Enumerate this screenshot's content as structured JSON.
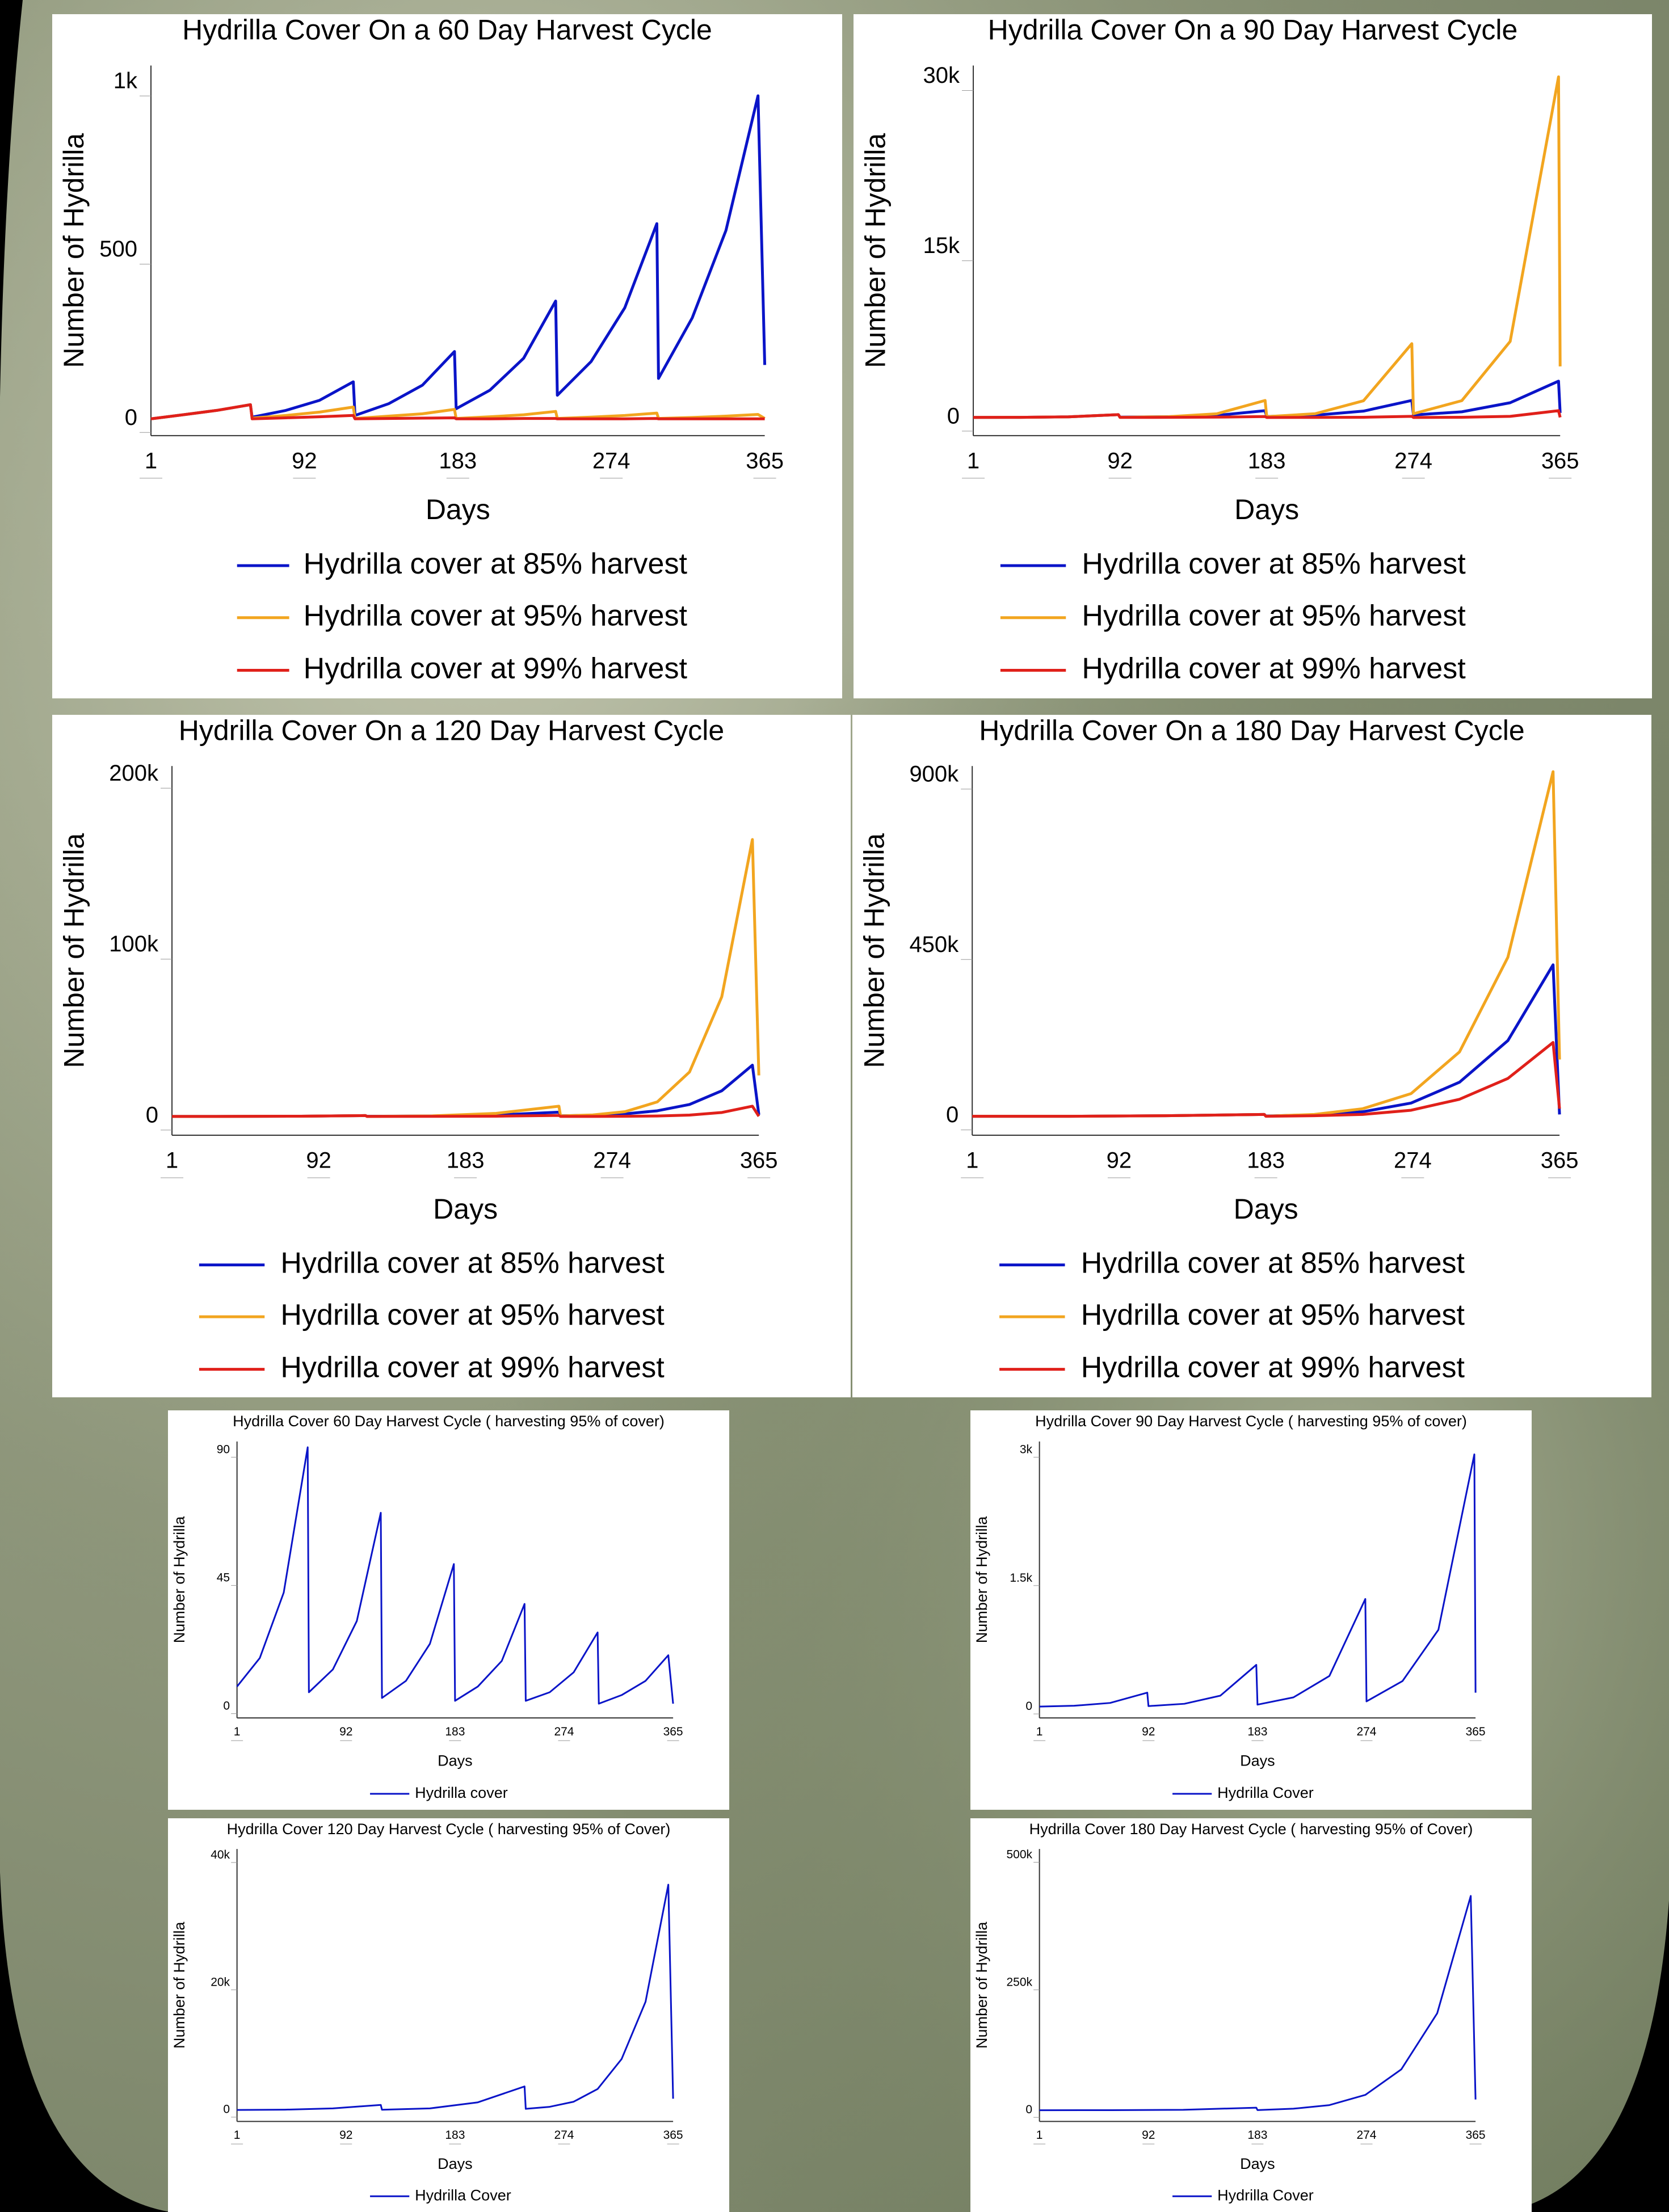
{
  "chart_data": [
    {
      "type": "line",
      "title": "Hydrilla Cover On a 60 Day Harvest Cycle",
      "x_label": "Days",
      "y_label": "Number of Hydrilla",
      "x": [
        1,
        20,
        40,
        60,
        61,
        81,
        101,
        121,
        122,
        142,
        162,
        181,
        182,
        202,
        222,
        241,
        242,
        262,
        282,
        301,
        302,
        322,
        342,
        361,
        365
      ],
      "series": [
        {
          "name": "Hydrilla cover at 85% harvest",
          "color": "#0a14c8",
          "values": [
            0,
            12,
            25,
            42,
            5,
            25,
            55,
            110,
            10,
            45,
            100,
            200,
            30,
            85,
            180,
            350,
            70,
            170,
            330,
            580,
            120,
            300,
            560,
            960,
            160
          ]
        },
        {
          "name": "Hydrilla cover at 95% harvest",
          "color": "#f2a51f",
          "values": [
            0,
            12,
            25,
            42,
            2,
            10,
            20,
            35,
            1,
            8,
            15,
            28,
            1,
            6,
            12,
            22,
            1,
            5,
            10,
            17,
            1,
            4,
            8,
            13,
            1
          ]
        },
        {
          "name": "Hydrilla cover at 99% harvest",
          "color": "#e0201a",
          "values": [
            0,
            12,
            25,
            42,
            0,
            3,
            6,
            10,
            0,
            1,
            2,
            3,
            0,
            0,
            1,
            1,
            0,
            0,
            0,
            1,
            0,
            0,
            0,
            0,
            0
          ]
        }
      ],
      "xlim": [
        1,
        365
      ],
      "xticks": [
        1,
        92,
        183,
        274,
        365
      ],
      "ylim": [
        -50,
        1050
      ],
      "yticks": [
        0,
        500,
        {
          "value": 1000,
          "label": "1k"
        }
      ]
    },
    {
      "type": "line",
      "title": "Hydrilla Cover On a 90 Day Harvest Cycle",
      "x_label": "Days",
      "y_label": "Number of Hydrilla",
      "x": [
        1,
        30,
        60,
        91,
        92,
        122,
        152,
        182,
        183,
        213,
        243,
        273,
        274,
        304,
        334,
        364,
        365
      ],
      "series": [
        {
          "name": "Hydrilla cover at 85% harvest",
          "color": "#0a14c8",
          "values": [
            3,
            13,
            56,
            250,
            30,
            70,
            180,
            600,
            90,
            200,
            560,
            1500,
            220,
            500,
            1300,
            3200,
            400
          ]
        },
        {
          "name": "Hydrilla cover at 95% harvest",
          "color": "#f2a51f",
          "values": [
            3,
            13,
            56,
            250,
            15,
            70,
            325,
            1500,
            75,
            330,
            1470,
            6500,
            330,
            1480,
            6700,
            30000,
            4500
          ]
        },
        {
          "name": "Hydrilla cover at 99% harvest",
          "color": "#e0201a",
          "values": [
            3,
            13,
            56,
            250,
            3,
            10,
            30,
            80,
            1,
            5,
            20,
            100,
            2,
            20,
            100,
            600,
            10
          ]
        }
      ],
      "xlim": [
        1,
        365
      ],
      "xticks": [
        1,
        92,
        183,
        274,
        365
      ],
      "ylim": [
        -1600,
        31000
      ],
      "yticks": [
        0,
        {
          "value": 15000,
          "label": "15k"
        },
        {
          "value": 30000,
          "label": "30k"
        }
      ]
    },
    {
      "type": "line",
      "title": "Hydrilla Cover On a 120 Day Harvest Cycle",
      "x_label": "Days",
      "y_label": "Number of Hydrilla",
      "x": [
        1,
        41,
        81,
        121,
        122,
        162,
        202,
        241,
        242,
        262,
        282,
        302,
        322,
        342,
        361,
        365
      ],
      "series": [
        {
          "name": "Hydrilla cover at 85% harvest",
          "color": "#0a14c8",
          "values": [
            1,
            30,
            150,
            500,
            75,
            250,
            800,
            2500,
            370,
            700,
            1500,
            3300,
            7000,
            15000,
            30000,
            1000
          ]
        },
        {
          "name": "Hydrilla cover at 95% harvest",
          "color": "#f2a51f",
          "values": [
            1,
            30,
            150,
            500,
            25,
            300,
            1800,
            6000,
            300,
            900,
            2800,
            8500,
            26000,
            70000,
            162000,
            24000
          ]
        },
        {
          "name": "Hydrilla cover at 99% harvest",
          "color": "#e0201a",
          "values": [
            1,
            30,
            150,
            500,
            5,
            30,
            150,
            600,
            6,
            25,
            80,
            250,
            800,
            2300,
            6000,
            100
          ]
        }
      ],
      "xlim": [
        1,
        365
      ],
      "xticks": [
        1,
        92,
        183,
        274,
        365
      ],
      "ylim": [
        -11000,
        205000
      ],
      "yticks": [
        0,
        {
          "value": 100000,
          "label": "100k"
        },
        {
          "value": 200000,
          "label": "200k"
        }
      ]
    },
    {
      "type": "line",
      "title": "Hydrilla Cover On a 180 Day Harvest Cycle",
      "x_label": "Days",
      "y_label": "Number of Hydrilla",
      "x": [
        1,
        61,
        121,
        182,
        183,
        213,
        243,
        273,
        303,
        333,
        361,
        365
      ],
      "series": [
        {
          "name": "Hydrilla cover at 85% harvest",
          "color": "#0a14c8",
          "values": [
            1,
            100,
            1500,
            5000,
            750,
            4000,
            12000,
            35000,
            90000,
            200000,
            400000,
            5000
          ]
        },
        {
          "name": "Hydrilla cover at 95% harvest",
          "color": "#f2a51f",
          "values": [
            1,
            100,
            1500,
            5000,
            250,
            5000,
            20000,
            60000,
            170000,
            420000,
            910000,
            150000
          ]
        },
        {
          "name": "Hydrilla cover at 99% harvest",
          "color": "#e0201a",
          "values": [
            1,
            100,
            1500,
            5000,
            50,
            1500,
            5000,
            16000,
            45000,
            100000,
            195000,
            20000
          ]
        }
      ],
      "xlim": [
        1,
        365
      ],
      "xticks": [
        1,
        92,
        183,
        274,
        365
      ],
      "ylim": [
        -50000,
        925000
      ],
      "yticks": [
        0,
        {
          "value": 450000,
          "label": "450k"
        },
        {
          "value": 900000,
          "label": "900k"
        }
      ]
    },
    {
      "type": "line",
      "title": "Hydrilla Cover 60 Day Harvest Cycle ( harvesting 95% of cover)",
      "x_label": "Days",
      "y_label": "Number of Hydrilla",
      "x": [
        1,
        20,
        40,
        60,
        61,
        81,
        101,
        121,
        122,
        142,
        162,
        182,
        183,
        202,
        222,
        241,
        242,
        262,
        282,
        302,
        303,
        322,
        342,
        361,
        365
      ],
      "series": [
        {
          "name": "Hydrilla cover",
          "color": "#0a14c8",
          "values": [
            7,
            17,
            40,
            91,
            5,
            13,
            30,
            68,
            3,
            9,
            22,
            50,
            2,
            7,
            16,
            36,
            2,
            5,
            12,
            26,
            1,
            4,
            9,
            18,
            1
          ]
        }
      ],
      "xlim": [
        1,
        365
      ],
      "xticks": [
        1,
        92,
        183,
        274,
        365
      ],
      "ylim": [
        -4,
        93
      ],
      "yticks": [
        0,
        45,
        90
      ]
    },
    {
      "type": "line",
      "title": "Hydrilla Cover 90 Day Harvest Cycle ( harvesting 95% of cover)",
      "x_label": "Days",
      "y_label": "Number of Hydrilla",
      "x": [
        1,
        30,
        60,
        91,
        92,
        122,
        152,
        182,
        183,
        213,
        243,
        273,
        274,
        304,
        334,
        364,
        365
      ],
      "series": [
        {
          "name": "Hydrilla Cover",
          "color": "#0a14c8",
          "values": [
            2,
            12,
            45,
            165,
            8,
            35,
            130,
            490,
            25,
            110,
            360,
            1260,
            63,
            300,
            900,
            2950,
            165
          ]
        }
      ],
      "xlim": [
        1,
        365
      ],
      "xticks": [
        1,
        92,
        183,
        274,
        365
      ],
      "ylim": [
        -130,
        3100
      ],
      "yticks": [
        0,
        {
          "value": 1500,
          "label": "1.5k"
        },
        {
          "value": 3000,
          "label": "3k"
        }
      ]
    },
    {
      "type": "line",
      "title": "Hydrilla Cover 120 Day Harvest Cycle ( harvesting 95% of Cover)",
      "x_label": "Days",
      "y_label": "Number of Hydrilla",
      "x": [
        1,
        41,
        81,
        121,
        122,
        162,
        202,
        241,
        242,
        262,
        282,
        302,
        322,
        342,
        361,
        365
      ],
      "series": [
        {
          "name": "Hydrilla Cover",
          "color": "#0a14c8",
          "values": [
            5,
            50,
            250,
            800,
            40,
            250,
            1200,
            3700,
            185,
            500,
            1300,
            3300,
            8000,
            17000,
            35400,
            1770
          ]
        }
      ],
      "xlim": [
        1,
        365
      ],
      "xticks": [
        1,
        92,
        183,
        274,
        365
      ],
      "ylim": [
        -1800,
        41000
      ],
      "yticks": [
        0,
        {
          "value": 20000,
          "label": "20k"
        },
        {
          "value": 40000,
          "label": "40k"
        }
      ]
    },
    {
      "type": "line",
      "title": "Hydrilla Cover 180 Day Harvest Cycle ( harvesting 95% of Cover)",
      "x_label": "Days",
      "y_label": "Number of Hydrilla",
      "x": [
        1,
        61,
        121,
        182,
        183,
        213,
        243,
        273,
        303,
        333,
        361,
        365
      ],
      "series": [
        {
          "name": "Hydrilla Cover",
          "color": "#0a14c8",
          "values": [
            5,
            100,
            800,
            5000,
            250,
            3000,
            10000,
            30000,
            80000,
            190000,
            420000,
            21000
          ]
        }
      ],
      "xlim": [
        1,
        365
      ],
      "xticks": [
        1,
        92,
        183,
        274,
        365
      ],
      "ylim": [
        -22000,
        512000
      ],
      "yticks": [
        0,
        {
          "value": 250000,
          "label": "250k"
        },
        {
          "value": 500000,
          "label": "500k"
        }
      ]
    }
  ]
}
